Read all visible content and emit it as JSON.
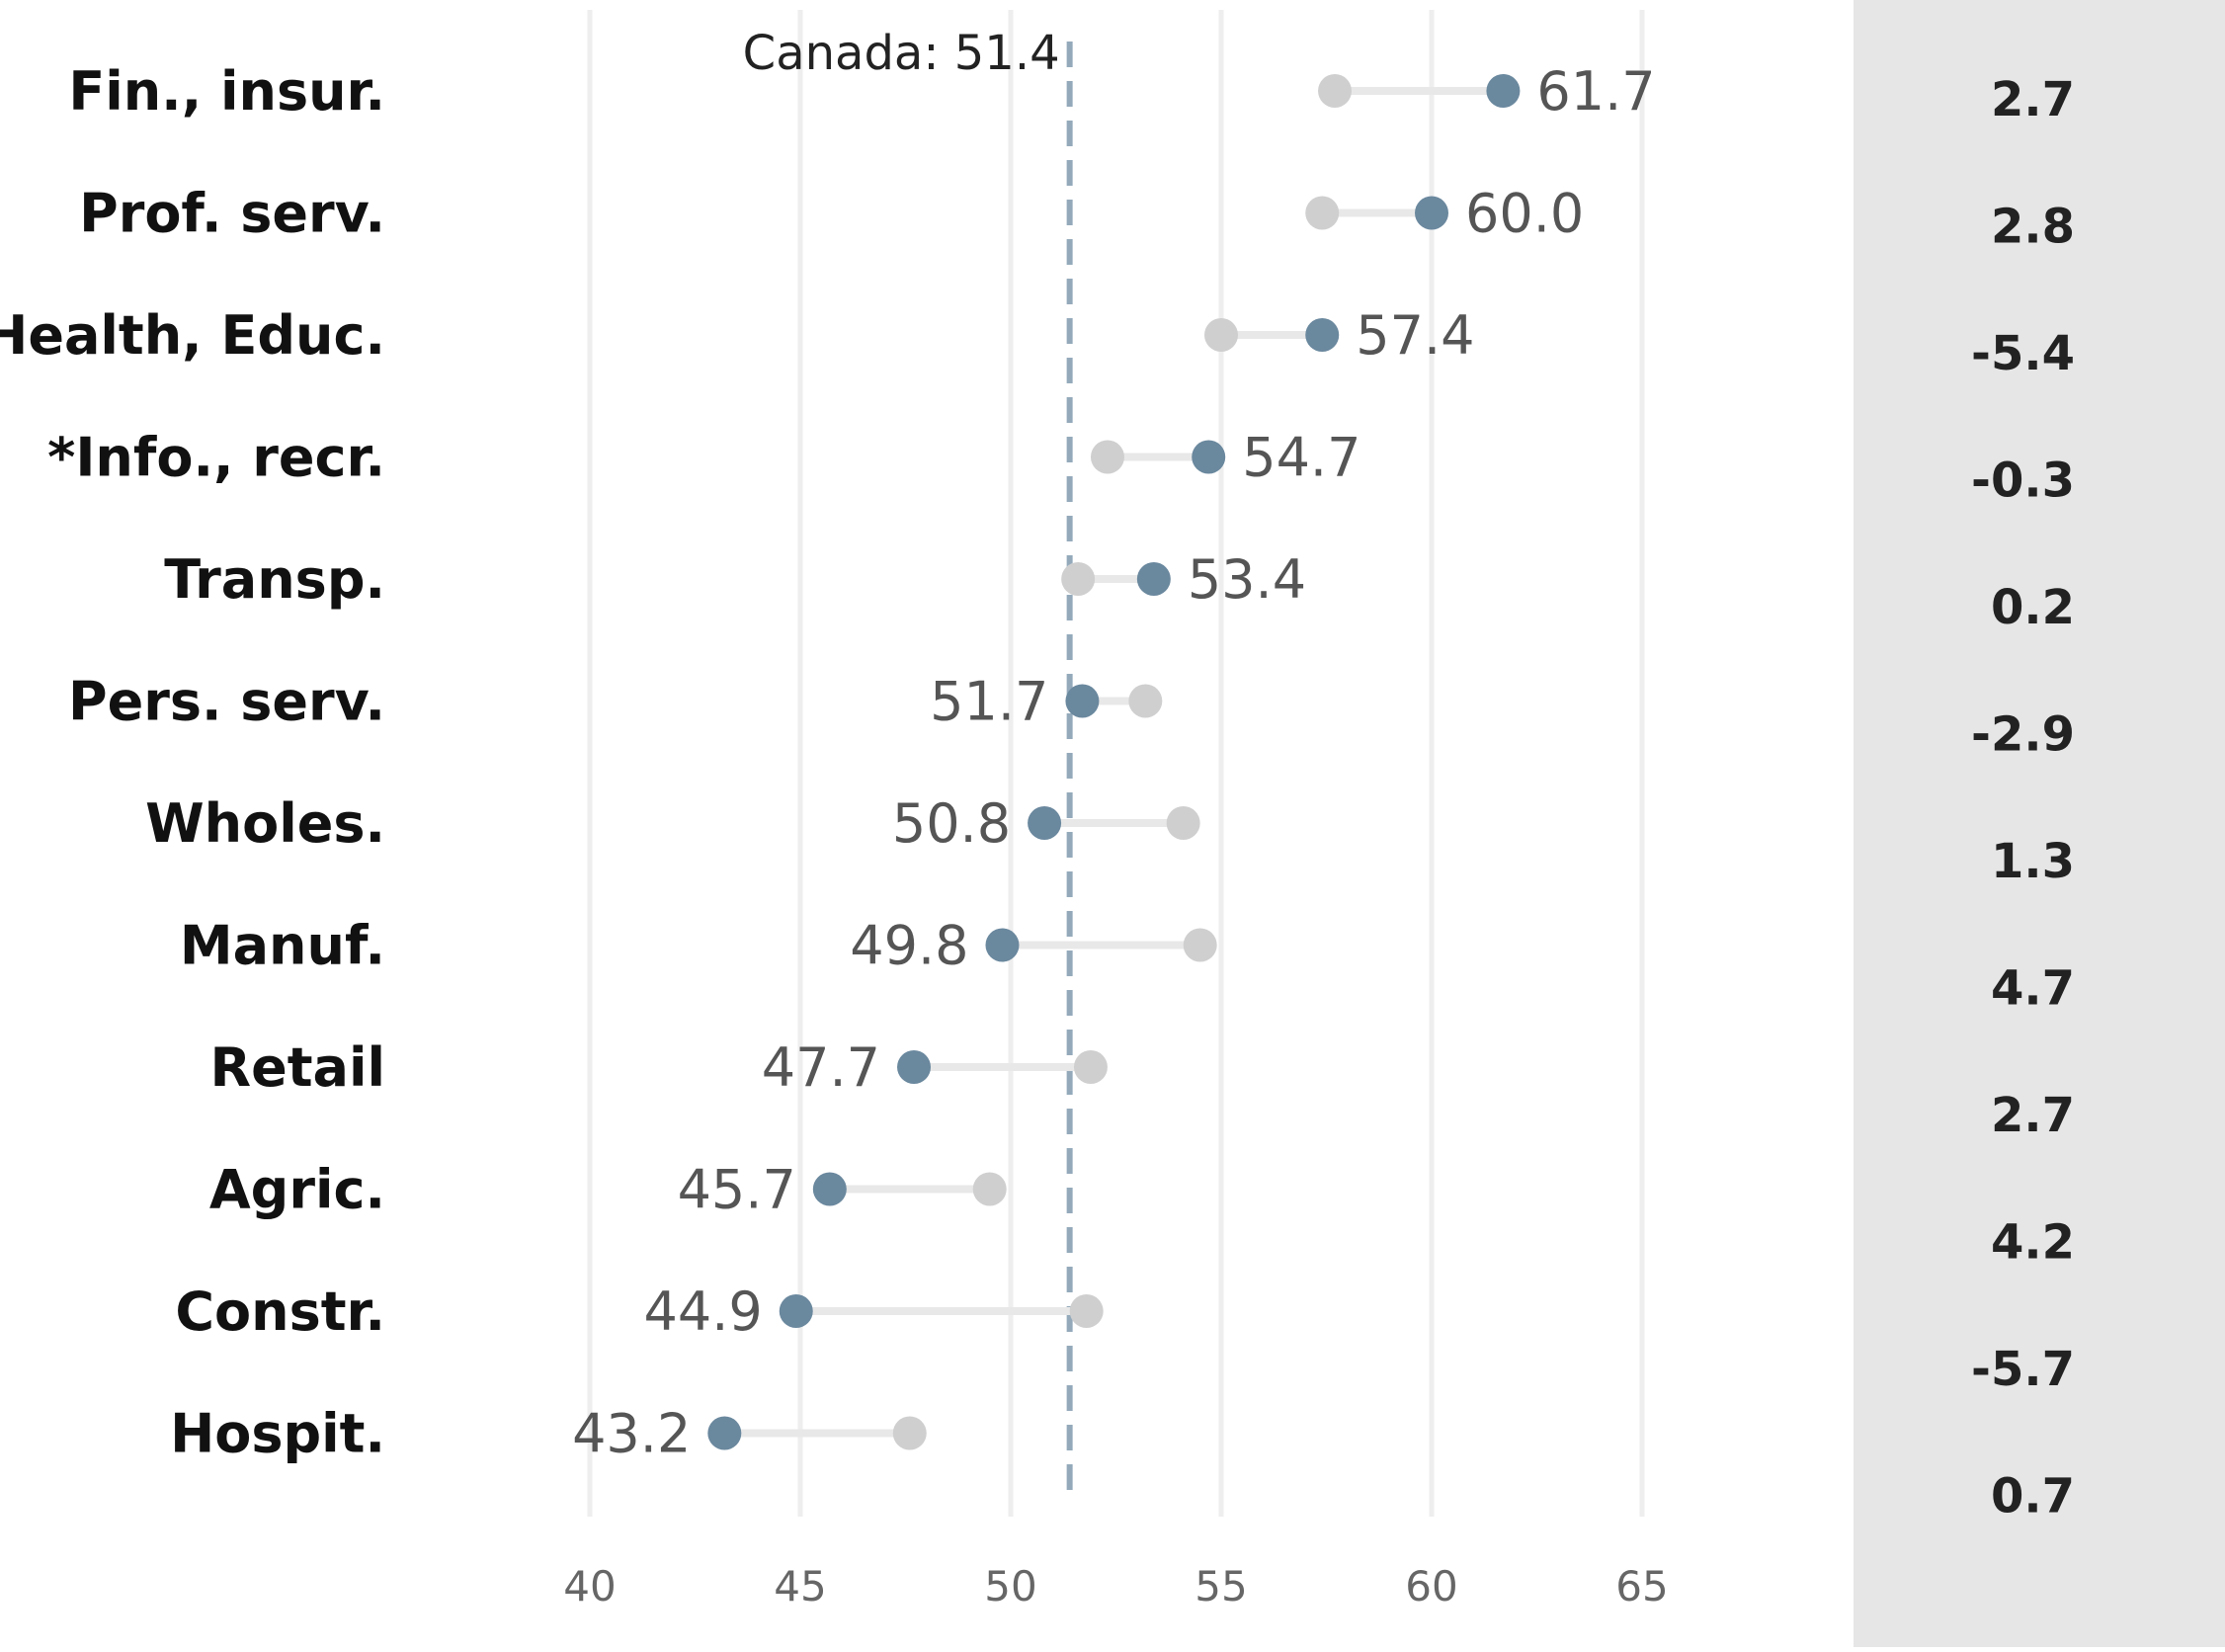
{
  "chart_data": {
    "type": "dumbbell",
    "categories": [
      "Fin., insur.",
      "Prof. serv.",
      "Health, Educ.",
      "*Info., recr.",
      "Transp.",
      "Pers. serv.",
      "Wholes.",
      "Manuf.",
      "Retail",
      "Agric.",
      "Constr.",
      "Hospit."
    ],
    "series": [
      {
        "values": [
          61.7,
          60.0,
          57.4,
          54.7,
          53.4,
          51.7,
          50.8,
          49.8,
          47.7,
          45.7,
          44.9,
          43.2
        ],
        "color": "#6a889e"
      },
      {
        "values": [
          57.7,
          57.4,
          55.0,
          52.3,
          51.6,
          53.2,
          54.1,
          54.5,
          51.9,
          49.5,
          51.8,
          47.6
        ],
        "color": "#cfcfcf"
      }
    ],
    "value_labels": [
      "61.7",
      "60.0",
      "57.4",
      "54.7",
      "53.4",
      "51.7",
      "50.8",
      "49.8",
      "47.7",
      "45.7",
      "44.9",
      "43.2"
    ],
    "side_values": [
      "2.7",
      "2.8",
      "-5.4",
      "-0.3",
      "0.2",
      "-2.9",
      "1.3",
      "4.7",
      "2.7",
      "4.2",
      "-5.7",
      "0.7"
    ],
    "reference_line": {
      "value": 51.4,
      "label": "Canada: 51.4",
      "color": "#94aabb"
    },
    "xlim": [
      40,
      65
    ],
    "xticks": [
      "40",
      "45",
      "50",
      "55",
      "60",
      "65"
    ],
    "grid": true,
    "side_panel_color": "#e6e6e6",
    "connector_color": "#e8e8e8"
  }
}
